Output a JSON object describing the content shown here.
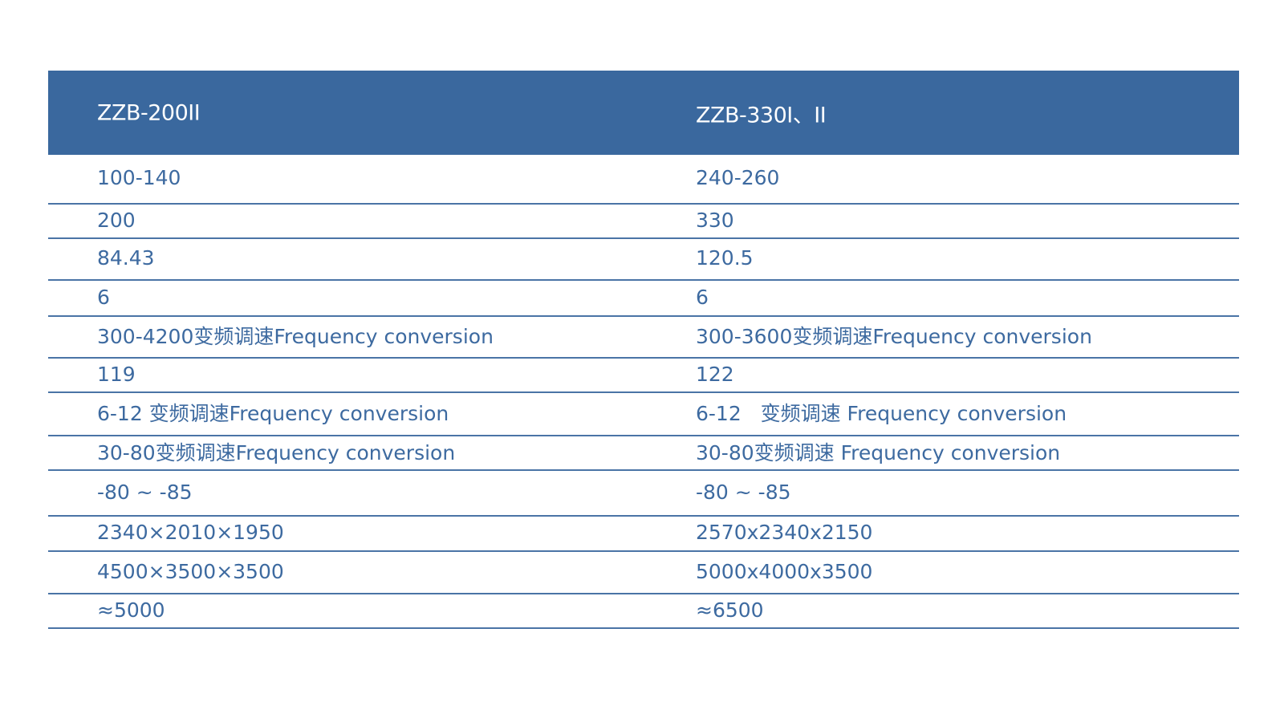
{
  "header": [
    "ZZB-200II",
    "ZZB-330I、II"
  ],
  "rows": [
    [
      "100-140",
      "240-260"
    ],
    [
      "200",
      "330"
    ],
    [
      "84.43",
      "120.5"
    ],
    [
      "6",
      "6"
    ],
    [
      "300-4200变频调速Frequency conversion",
      "300-3600变频调速Frequency conversion"
    ],
    [
      "119",
      "122"
    ],
    [
      "6-12 变频调速Frequency conversion",
      "6-12   变频调速 Frequency conversion"
    ],
    [
      "30-80变频调速Frequency conversion",
      "30-80变频调速 Frequency conversion"
    ],
    [
      "-80 ~ -85",
      "-80 ~ -85"
    ],
    [
      "2340×2010×1950",
      "2570x2340x2150"
    ],
    [
      "4500×3500×3500",
      "5000x4000x3500"
    ],
    [
      "≈5000",
      "≈6500"
    ]
  ],
  "colors": {
    "header_bg": "#3a689e",
    "text": "#3d6aa0",
    "rule": "#4a74a6"
  }
}
